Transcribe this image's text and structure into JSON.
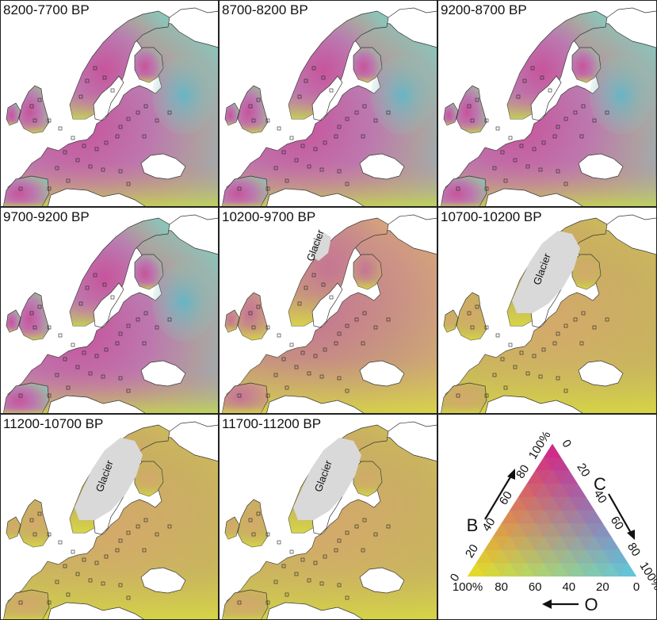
{
  "panels": [
    {
      "label": "8200-7700 BP",
      "glacier": "",
      "palette": "pink"
    },
    {
      "label": "8700-8200 BP",
      "glacier": "",
      "palette": "pink"
    },
    {
      "label": "9200-8700 BP",
      "glacier": "",
      "palette": "pink"
    },
    {
      "label": "9700-9200 BP",
      "glacier": "",
      "palette": "pink"
    },
    {
      "label": "10200-9700 BP",
      "glacier": "Glacier",
      "palette": "mix"
    },
    {
      "label": "10700-10200 BP",
      "glacier": "Glacier",
      "palette": "orange"
    },
    {
      "label": "11200-10700 BP",
      "glacier": "Glacier",
      "palette": "orange"
    },
    {
      "label": "11700-11200 BP",
      "glacier": "Glacier",
      "palette": "orange"
    }
  ],
  "legend": {
    "axis_b": "B",
    "axis_c": "C",
    "axis_o": "O",
    "b_ticks": [
      "0",
      "20",
      "40",
      "60",
      "80",
      "100%"
    ],
    "c_ticks": [
      "0",
      "20",
      "40",
      "60",
      "80",
      "100%"
    ],
    "o_ticks": [
      "100%",
      "80",
      "60",
      "40",
      "20",
      "0"
    ],
    "colors": {
      "b_vertex": "#d0208a",
      "c_vertex": "#5bc8e0",
      "o_vertex": "#e8e020"
    }
  }
}
